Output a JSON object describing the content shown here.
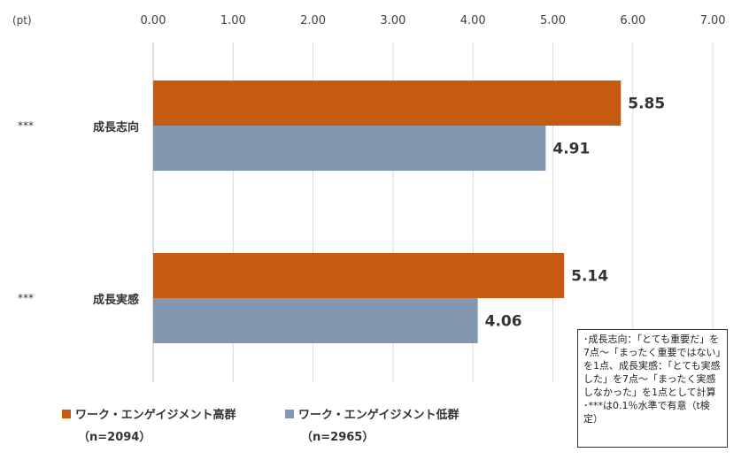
{
  "chart_data": {
    "type": "bar",
    "orientation": "horizontal",
    "unit_label": "(pt)",
    "xlim": [
      0,
      7
    ],
    "ticks": [
      "0.00",
      "1.00",
      "2.00",
      "3.00",
      "4.00",
      "5.00",
      "6.00",
      "7.00"
    ],
    "categories": [
      "成長志向",
      "成長実感"
    ],
    "significance": [
      "***",
      "***"
    ],
    "series": [
      {
        "name": "ワーク・エンゲイジメント高群",
        "n_label": "（n=2094）",
        "color": "#c55a11",
        "values": [
          5.85,
          5.14
        ]
      },
      {
        "name": "ワーク・エンゲイジメント低群",
        "n_label": "（n=2965）",
        "color": "#8497b0",
        "values": [
          4.91,
          4.06
        ]
      }
    ],
    "grid": "vertical",
    "legend": "bottom-left"
  },
  "note": {
    "lines": [
      "･成長志向：「とても重要だ」を7点～「まったく重要ではない」を1点、成長実感：「とても実感した」を7点～「まったく実感しなかった」を1点として計算",
      "･***は0.1％水準で有意（t検定）"
    ]
  }
}
